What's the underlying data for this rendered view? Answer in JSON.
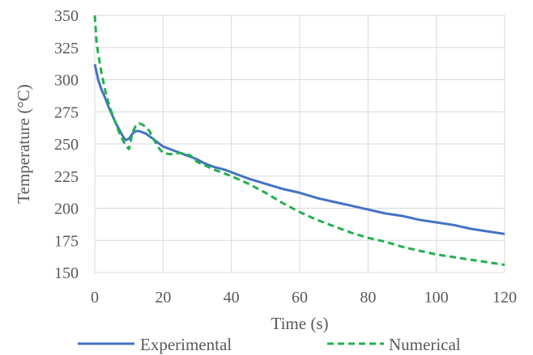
{
  "chart_data": {
    "type": "line",
    "xlabel": "Time (s)",
    "ylabel": "Temperature (°C)",
    "xlim": [
      0,
      120
    ],
    "ylim": [
      150,
      350
    ],
    "xticks": [
      0,
      20,
      40,
      60,
      80,
      100,
      120
    ],
    "yticks": [
      150,
      175,
      200,
      225,
      250,
      275,
      300,
      325,
      350
    ],
    "grid": true,
    "legend_position": "bottom",
    "series": [
      {
        "name": "Experimental",
        "color": "#4472c4",
        "dash": "solid",
        "points": [
          [
            0,
            312
          ],
          [
            1,
            300
          ],
          [
            2,
            292
          ],
          [
            3,
            286
          ],
          [
            4,
            279
          ],
          [
            5,
            273
          ],
          [
            6,
            267
          ],
          [
            7,
            262
          ],
          [
            8,
            257
          ],
          [
            9,
            253
          ],
          [
            10,
            254
          ],
          [
            11,
            258
          ],
          [
            12,
            260
          ],
          [
            13,
            260
          ],
          [
            14,
            259
          ],
          [
            15,
            258
          ],
          [
            16,
            256
          ],
          [
            17,
            254
          ],
          [
            18,
            252
          ],
          [
            20,
            248
          ],
          [
            22,
            246
          ],
          [
            25,
            243
          ],
          [
            28,
            240
          ],
          [
            30,
            238
          ],
          [
            32,
            235
          ],
          [
            35,
            232
          ],
          [
            38,
            230
          ],
          [
            40,
            228
          ],
          [
            45,
            223
          ],
          [
            50,
            219
          ],
          [
            55,
            215
          ],
          [
            60,
            212
          ],
          [
            65,
            208
          ],
          [
            70,
            205
          ],
          [
            75,
            202
          ],
          [
            80,
            199
          ],
          [
            85,
            196
          ],
          [
            90,
            194
          ],
          [
            95,
            191
          ],
          [
            100,
            189
          ],
          [
            105,
            187
          ],
          [
            110,
            184
          ],
          [
            115,
            182
          ],
          [
            120,
            180
          ]
        ]
      },
      {
        "name": "Numerical",
        "color": "#1fb14f",
        "dash": "dashed",
        "points": [
          [
            0,
            350
          ],
          [
            0.5,
            330
          ],
          [
            1,
            320
          ],
          [
            2,
            305
          ],
          [
            3,
            292
          ],
          [
            4,
            282
          ],
          [
            5,
            274
          ],
          [
            6,
            267
          ],
          [
            7,
            260
          ],
          [
            8,
            254
          ],
          [
            9,
            249
          ],
          [
            10,
            246
          ],
          [
            10.5,
            252
          ],
          [
            11,
            259
          ],
          [
            12,
            264
          ],
          [
            13,
            266
          ],
          [
            14,
            265
          ],
          [
            15,
            263
          ],
          [
            16,
            260
          ],
          [
            17,
            255
          ],
          [
            18,
            250
          ],
          [
            19,
            246
          ],
          [
            20,
            243
          ],
          [
            22,
            242
          ],
          [
            25,
            243
          ],
          [
            28,
            241
          ],
          [
            30,
            236
          ],
          [
            35,
            230
          ],
          [
            40,
            225
          ],
          [
            45,
            219
          ],
          [
            50,
            212
          ],
          [
            55,
            204
          ],
          [
            60,
            197
          ],
          [
            65,
            191
          ],
          [
            70,
            186
          ],
          [
            75,
            181
          ],
          [
            80,
            177
          ],
          [
            85,
            174
          ],
          [
            90,
            170
          ],
          [
            95,
            167
          ],
          [
            100,
            164
          ],
          [
            105,
            162
          ],
          [
            110,
            160
          ],
          [
            115,
            158
          ],
          [
            120,
            156
          ]
        ]
      }
    ]
  }
}
